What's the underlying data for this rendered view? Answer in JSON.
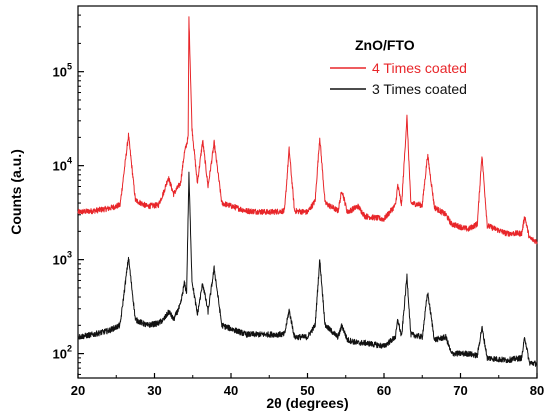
{
  "chart_data": {
    "type": "line",
    "xlabel": "2θ (degrees)",
    "ylabel": "Counts (a.u.)",
    "xlim": [
      20,
      80
    ],
    "ylim": [
      55,
      500000
    ],
    "y_scale": "log",
    "x_ticks": [
      20,
      30,
      40,
      50,
      60,
      70,
      80
    ],
    "y_ticks": [
      {
        "value": 100,
        "base": "10",
        "exp": "2"
      },
      {
        "value": 1000,
        "base": "10",
        "exp": "3"
      },
      {
        "value": 10000,
        "base": "10",
        "exp": "4"
      },
      {
        "value": 100000,
        "base": "10",
        "exp": "5"
      }
    ],
    "grid": false,
    "legend": {
      "title": "ZnO/FTO",
      "placement": "top-right"
    },
    "series": [
      {
        "name": "4 Times coated",
        "color": "#e8262a",
        "points": [
          [
            20,
            3200
          ],
          [
            22,
            3300
          ],
          [
            24,
            3500
          ],
          [
            25.5,
            3800
          ],
          [
            26.6,
            21000
          ],
          [
            27.5,
            4300
          ],
          [
            29,
            3700
          ],
          [
            30.5,
            3800
          ],
          [
            31.2,
            5200
          ],
          [
            31.8,
            7500
          ],
          [
            32.5,
            5000
          ],
          [
            33.4,
            6500
          ],
          [
            33.9,
            13500
          ],
          [
            34.4,
            20000
          ],
          [
            34.5,
            380000
          ],
          [
            34.9,
            25000
          ],
          [
            35.6,
            6500
          ],
          [
            36.3,
            18500
          ],
          [
            37.0,
            6000
          ],
          [
            37.8,
            17500
          ],
          [
            38.8,
            4000
          ],
          [
            42,
            3300
          ],
          [
            45,
            3200
          ],
          [
            47.0,
            3300
          ],
          [
            47.6,
            15000
          ],
          [
            48.3,
            3300
          ],
          [
            50,
            3200
          ],
          [
            51.0,
            4200
          ],
          [
            51.6,
            20000
          ],
          [
            52.3,
            4000
          ],
          [
            54.0,
            3300
          ],
          [
            54.5,
            5500
          ],
          [
            55.2,
            3200
          ],
          [
            56.6,
            3700
          ],
          [
            57.5,
            2900
          ],
          [
            60,
            2700
          ],
          [
            61.5,
            3800
          ],
          [
            61.8,
            6200
          ],
          [
            62.3,
            3800
          ],
          [
            63.0,
            33000
          ],
          [
            63.5,
            4000
          ],
          [
            65.0,
            3800
          ],
          [
            65.7,
            13000
          ],
          [
            66.6,
            3600
          ],
          [
            68.1,
            3000
          ],
          [
            68.8,
            2400
          ],
          [
            71,
            2100
          ],
          [
            72.2,
            2400
          ],
          [
            72.8,
            13000
          ],
          [
            73.5,
            2300
          ],
          [
            76,
            1900
          ],
          [
            78.0,
            1900
          ],
          [
            78.4,
            2900
          ],
          [
            79,
            1700
          ],
          [
            80,
            1550
          ]
        ]
      },
      {
        "name": "3 Times coated",
        "color": "#111111",
        "points": [
          [
            20,
            150
          ],
          [
            22,
            160
          ],
          [
            24,
            175
          ],
          [
            25.5,
            200
          ],
          [
            26.6,
            1050
          ],
          [
            27.5,
            230
          ],
          [
            29,
            200
          ],
          [
            30.5,
            210
          ],
          [
            31.2,
            230
          ],
          [
            31.9,
            280
          ],
          [
            32.5,
            230
          ],
          [
            33.4,
            330
          ],
          [
            33.9,
            560
          ],
          [
            34.2,
            450
          ],
          [
            34.5,
            8000
          ],
          [
            34.9,
            600
          ],
          [
            35.6,
            260
          ],
          [
            36.3,
            560
          ],
          [
            37.0,
            280
          ],
          [
            37.8,
            810
          ],
          [
            38.8,
            200
          ],
          [
            42,
            160
          ],
          [
            45,
            160
          ],
          [
            47.0,
            160
          ],
          [
            47.6,
            290
          ],
          [
            48.3,
            150
          ],
          [
            50,
            150
          ],
          [
            51.0,
            200
          ],
          [
            51.6,
            1000
          ],
          [
            52.3,
            200
          ],
          [
            54.0,
            150
          ],
          [
            54.5,
            200
          ],
          [
            55.2,
            140
          ],
          [
            56.6,
            130
          ],
          [
            57.5,
            130
          ],
          [
            60,
            120
          ],
          [
            61.5,
            150
          ],
          [
            61.8,
            230
          ],
          [
            62.3,
            150
          ],
          [
            63.0,
            670
          ],
          [
            63.5,
            160
          ],
          [
            65.0,
            150
          ],
          [
            65.7,
            450
          ],
          [
            66.6,
            140
          ],
          [
            68.1,
            150
          ],
          [
            68.8,
            100
          ],
          [
            71,
            100
          ],
          [
            72.2,
            95
          ],
          [
            72.8,
            190
          ],
          [
            73.5,
            90
          ],
          [
            76,
            85
          ],
          [
            78.0,
            90
          ],
          [
            78.4,
            150
          ],
          [
            79,
            80
          ],
          [
            80,
            78
          ]
        ]
      }
    ]
  }
}
